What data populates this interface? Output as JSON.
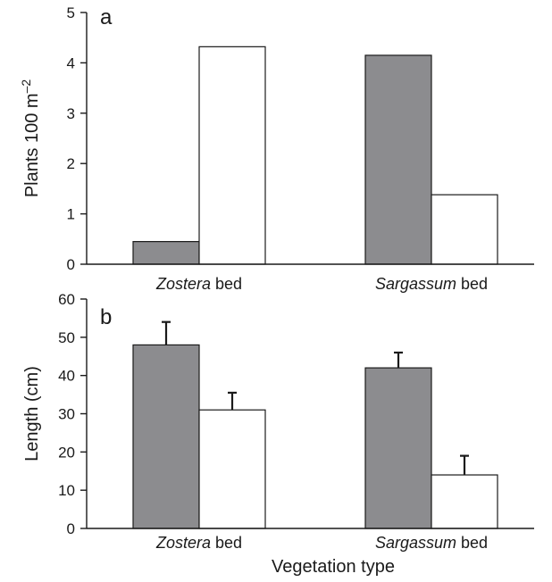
{
  "figure": {
    "xlabel": "Vegetation type",
    "colors": {
      "filled": "#8c8c8f",
      "open": "#ffffff",
      "stroke": "#1a1a1a"
    }
  },
  "chart_data": [
    {
      "type": "bar",
      "panel_label": "a",
      "categories": [
        {
          "italic": "Zostera",
          "rest": " bed"
        },
        {
          "italic": "Sargassum",
          "rest": " bed"
        }
      ],
      "ylabel": {
        "main": "Plants 100 m",
        "sup": "–2"
      },
      "ylim": [
        0,
        5
      ],
      "yticks": [
        0,
        1,
        2,
        3,
        4,
        5
      ],
      "series": [
        {
          "color": "#8c8c8f",
          "values": [
            0.45,
            4.15
          ]
        },
        {
          "color": "#ffffff",
          "values": [
            4.32,
            1.38
          ]
        }
      ]
    },
    {
      "type": "bar",
      "panel_label": "b",
      "categories": [
        {
          "italic": "Zostera",
          "rest": " bed"
        },
        {
          "italic": "Sargassum",
          "rest": " bed"
        }
      ],
      "ylabel": {
        "main": "Length (cm)",
        "sup": ""
      },
      "ylim": [
        0,
        60
      ],
      "yticks": [
        0,
        10,
        20,
        30,
        40,
        50,
        60
      ],
      "series": [
        {
          "color": "#8c8c8f",
          "values": [
            48,
            42
          ],
          "errors": [
            6,
            4
          ]
        },
        {
          "color": "#ffffff",
          "values": [
            31,
            14
          ],
          "errors": [
            4.5,
            5
          ]
        }
      ]
    }
  ]
}
